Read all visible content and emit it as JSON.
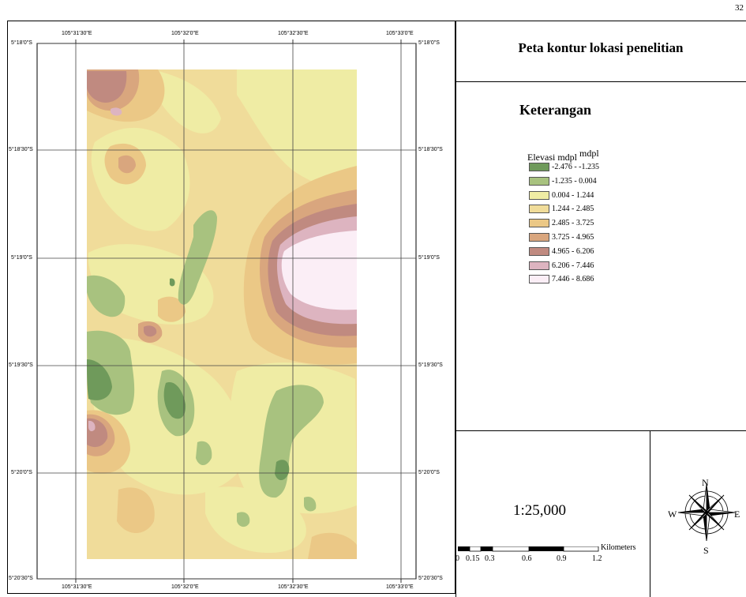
{
  "page_number": "32",
  "title": "Peta kontur lokasi penelitian",
  "legend": {
    "heading": "Keterangan",
    "label_a": "Elevasi mdpl",
    "label_b": "mdpl",
    "classes": [
      {
        "range": "-2.476 - -1.235",
        "color": "#6f9a5b"
      },
      {
        "range": "-1.235 - 0.004",
        "color": "#a8c27f"
      },
      {
        "range": "0.004 - 1.244",
        "color": "#efeca4"
      },
      {
        "range": "1.244 - 2.485",
        "color": "#f0dc9a"
      },
      {
        "range": "2.485 - 3.725",
        "color": "#ebc886"
      },
      {
        "range": "3.725 - 4.965",
        "color": "#d9a67e"
      },
      {
        "range": "4.965 - 6.206",
        "color": "#c08a80"
      },
      {
        "range": "6.206 - 7.446",
        "color": "#ddb4c0"
      },
      {
        "range": "7.446 - 8.686",
        "color": "#fbeef6"
      }
    ]
  },
  "axes": {
    "lon_labels": [
      "105°31'30\"E",
      "105°32'0\"E",
      "105°32'30\"E",
      "105°33'0\"E"
    ],
    "lat_labels": [
      "5°18'0\"S",
      "5°18'30\"S",
      "5°19'0\"S",
      "5°19'30\"S",
      "5°20'0\"S",
      "5°20'30\"S"
    ]
  },
  "scale": {
    "ratio": "1:25,000",
    "unit": "Kilometers",
    "ticks": [
      "0",
      "0.15",
      "0.3",
      "0.6",
      "0.9",
      "1.2"
    ]
  },
  "north_arrow": {
    "n": "N",
    "e": "E",
    "s": "S",
    "w": "W"
  }
}
